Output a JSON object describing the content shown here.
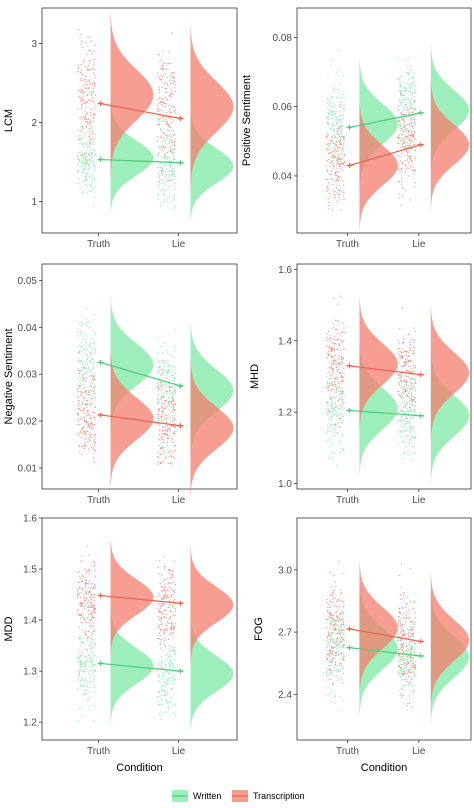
{
  "colors": {
    "written": "#7ee8a6",
    "transcription": "#f47c6c",
    "written_line": "#4fc97d",
    "transcription_line": "#e86452"
  },
  "chart_data": [
    {
      "type": "raincloud",
      "ylabel": "LCM",
      "xlabel": "",
      "categories": [
        "Truth",
        "Lie"
      ],
      "ylim": [
        0.6,
        3.45
      ],
      "yticks": [
        1,
        2,
        3
      ],
      "ytick_labels": [
        "1",
        "2",
        "3"
      ],
      "series": [
        {
          "name": "Written",
          "means": [
            1.53,
            1.49
          ],
          "density_modes": [
            1.55,
            1.45
          ],
          "sd": 0.22,
          "spread": [
            0.9,
            3.3
          ]
        },
        {
          "name": "Transcription",
          "means": [
            2.24,
            2.05
          ],
          "density_modes": [
            2.35,
            2.2
          ],
          "sd": 0.32,
          "spread": [
            1.0,
            3.35
          ]
        }
      ]
    },
    {
      "type": "raincloud",
      "ylabel": "Positive Sentiment",
      "xlabel": "",
      "categories": [
        "Truth",
        "Lie"
      ],
      "ylim": [
        0.0235,
        0.0885
      ],
      "yticks": [
        0.04,
        0.06,
        0.08
      ],
      "ytick_labels": [
        "0.04",
        "0.06",
        "0.08"
      ],
      "series": [
        {
          "name": "Written",
          "means": [
            0.054,
            0.0582
          ],
          "density_modes": [
            0.055,
            0.059
          ],
          "sd": 0.0058,
          "spread": [
            0.035,
            0.08
          ]
        },
        {
          "name": "Transcription",
          "means": [
            0.043,
            0.049
          ],
          "density_modes": [
            0.043,
            0.049
          ],
          "sd": 0.0058,
          "spread": [
            0.028,
            0.08
          ]
        }
      ]
    },
    {
      "type": "raincloud",
      "ylabel": "Negative Sentiment",
      "xlabel": "",
      "categories": [
        "Truth",
        "Lie"
      ],
      "ylim": [
        0.0055,
        0.0535
      ],
      "yticks": [
        0.01,
        0.02,
        0.03,
        0.04,
        0.05
      ],
      "ytick_labels": [
        "0.01",
        "0.02",
        "0.03",
        "0.04",
        "0.05"
      ],
      "series": [
        {
          "name": "Written",
          "means": [
            0.0325,
            0.0275
          ],
          "density_modes": [
            0.032,
            0.0265
          ],
          "sd": 0.0045,
          "spread": [
            0.012,
            0.05
          ]
        },
        {
          "name": "Transcription",
          "means": [
            0.0213,
            0.019
          ],
          "density_modes": [
            0.0205,
            0.0185
          ],
          "sd": 0.0045,
          "spread": [
            0.01,
            0.05
          ]
        }
      ]
    },
    {
      "type": "raincloud",
      "ylabel": "MHD",
      "xlabel": "",
      "categories": [
        "Truth",
        "Lie"
      ],
      "ylim": [
        0.985,
        1.615
      ],
      "yticks": [
        1.0,
        1.2,
        1.4,
        1.6
      ],
      "ytick_labels": [
        "1.0",
        "1.2",
        "1.4",
        "1.6"
      ],
      "series": [
        {
          "name": "Written",
          "means": [
            1.205,
            1.19
          ],
          "density_modes": [
            1.21,
            1.19
          ],
          "sd": 0.058,
          "spread": [
            1.05,
            1.55
          ]
        },
        {
          "name": "Transcription",
          "means": [
            1.33,
            1.305
          ],
          "density_modes": [
            1.335,
            1.31
          ],
          "sd": 0.058,
          "spread": [
            1.05,
            1.55
          ]
        }
      ]
    },
    {
      "type": "raincloud",
      "ylabel": "MDD",
      "xlabel": "Condition",
      "categories": [
        "Truth",
        "Lie"
      ],
      "ylim": [
        1.165,
        1.6
      ],
      "yticks": [
        1.2,
        1.3,
        1.4,
        1.5,
        1.6
      ],
      "ytick_labels": [
        "1.2",
        "1.3",
        "1.4",
        "1.5",
        "1.6"
      ],
      "series": [
        {
          "name": "Written",
          "means": [
            1.315,
            1.3
          ],
          "density_modes": [
            1.31,
            1.295
          ],
          "sd": 0.035,
          "spread": [
            1.2,
            1.56
          ]
        },
        {
          "name": "Transcription",
          "means": [
            1.448,
            1.433
          ],
          "density_modes": [
            1.445,
            1.43
          ],
          "sd": 0.035,
          "spread": [
            1.2,
            1.56
          ]
        }
      ]
    },
    {
      "type": "raincloud",
      "ylabel": "FOG",
      "xlabel": "Condition",
      "categories": [
        "Truth",
        "Lie"
      ],
      "ylim": [
        2.18,
        3.25
      ],
      "yticks": [
        2.4,
        2.7,
        3.0
      ],
      "ytick_labels": [
        "2.4",
        "2.7",
        "3.0"
      ],
      "series": [
        {
          "name": "Written",
          "means": [
            2.625,
            2.585
          ],
          "density_modes": [
            2.62,
            2.58
          ],
          "sd": 0.1,
          "spread": [
            2.3,
            3.15
          ]
        },
        {
          "name": "Transcription",
          "means": [
            2.715,
            2.655
          ],
          "density_modes": [
            2.72,
            2.66
          ],
          "sd": 0.1,
          "spread": [
            2.3,
            3.15
          ]
        }
      ]
    }
  ],
  "legend": {
    "items": [
      "Written",
      "Transcription"
    ]
  }
}
